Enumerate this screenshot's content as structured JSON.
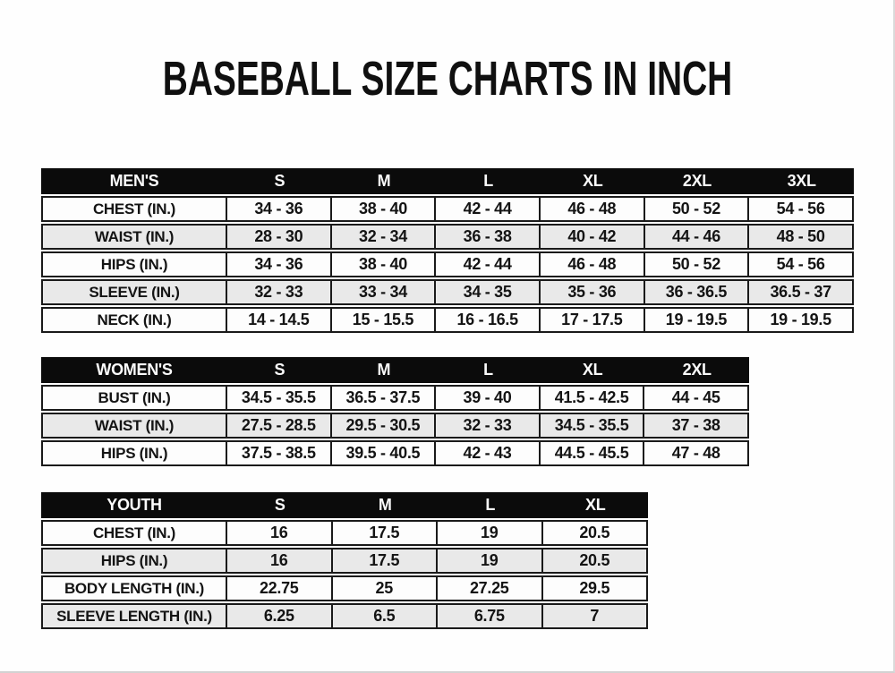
{
  "page": {
    "title": "BASEBALL SIZE CHARTS IN INCH",
    "unit": "inches",
    "colors": {
      "background": "#fefefe",
      "header_bar_bg": "#0b0b0b",
      "header_bar_text": "#fbfbfb",
      "row_bg": "#fdfdfd",
      "row_alt_bg": "#e9e9e9",
      "border": "#1a1a1a",
      "text": "#141414"
    }
  },
  "tables": [
    {
      "id": "mens",
      "header": [
        "MEN'S",
        "S",
        "M",
        "L",
        "XL",
        "2XL",
        "3XL"
      ],
      "rows": [
        [
          "CHEST (IN.)",
          "34 - 36",
          "38 - 40",
          "42 - 44",
          "46 - 48",
          "50 - 52",
          "54 - 56"
        ],
        [
          "WAIST (IN.)",
          "28 - 30",
          "32 - 34",
          "36 - 38",
          "40 - 42",
          "44 - 46",
          "48 - 50"
        ],
        [
          "HIPS (IN.)",
          "34 - 36",
          "38 - 40",
          "42 - 44",
          "46 - 48",
          "50 - 52",
          "54 - 56"
        ],
        [
          "SLEEVE (IN.)",
          "32 - 33",
          "33 - 34",
          "34 - 35",
          "35 - 36",
          "36 - 36.5",
          "36.5 - 37"
        ],
        [
          "NECK (IN.)",
          "14 - 14.5",
          "15 - 15.5",
          "16 - 16.5",
          "17 - 17.5",
          "19 - 19.5",
          "19 - 19.5"
        ]
      ]
    },
    {
      "id": "womens",
      "header": [
        "WOMEN'S",
        "S",
        "M",
        "L",
        "XL",
        "2XL"
      ],
      "rows": [
        [
          "BUST (IN.)",
          "34.5 - 35.5",
          "36.5 - 37.5",
          "39 - 40",
          "41.5 - 42.5",
          "44 - 45"
        ],
        [
          "WAIST (IN.)",
          "27.5 - 28.5",
          "29.5 - 30.5",
          "32 - 33",
          "34.5 - 35.5",
          "37 - 38"
        ],
        [
          "HIPS (IN.)",
          "37.5 - 38.5",
          "39.5 - 40.5",
          "42 - 43",
          "44.5 - 45.5",
          "47 - 48"
        ]
      ]
    },
    {
      "id": "youth",
      "header": [
        "YOUTH",
        "S",
        "M",
        "L",
        "XL"
      ],
      "rows": [
        [
          "CHEST (IN.)",
          "16",
          "17.5",
          "19",
          "20.5"
        ],
        [
          "HIPS (IN.)",
          "16",
          "17.5",
          "19",
          "20.5"
        ],
        [
          "BODY LENGTH (IN.)",
          "22.75",
          "25",
          "27.25",
          "29.5"
        ],
        [
          "SLEEVE LENGTH (IN.)",
          "6.25",
          "6.5",
          "6.75",
          "7"
        ]
      ]
    }
  ]
}
